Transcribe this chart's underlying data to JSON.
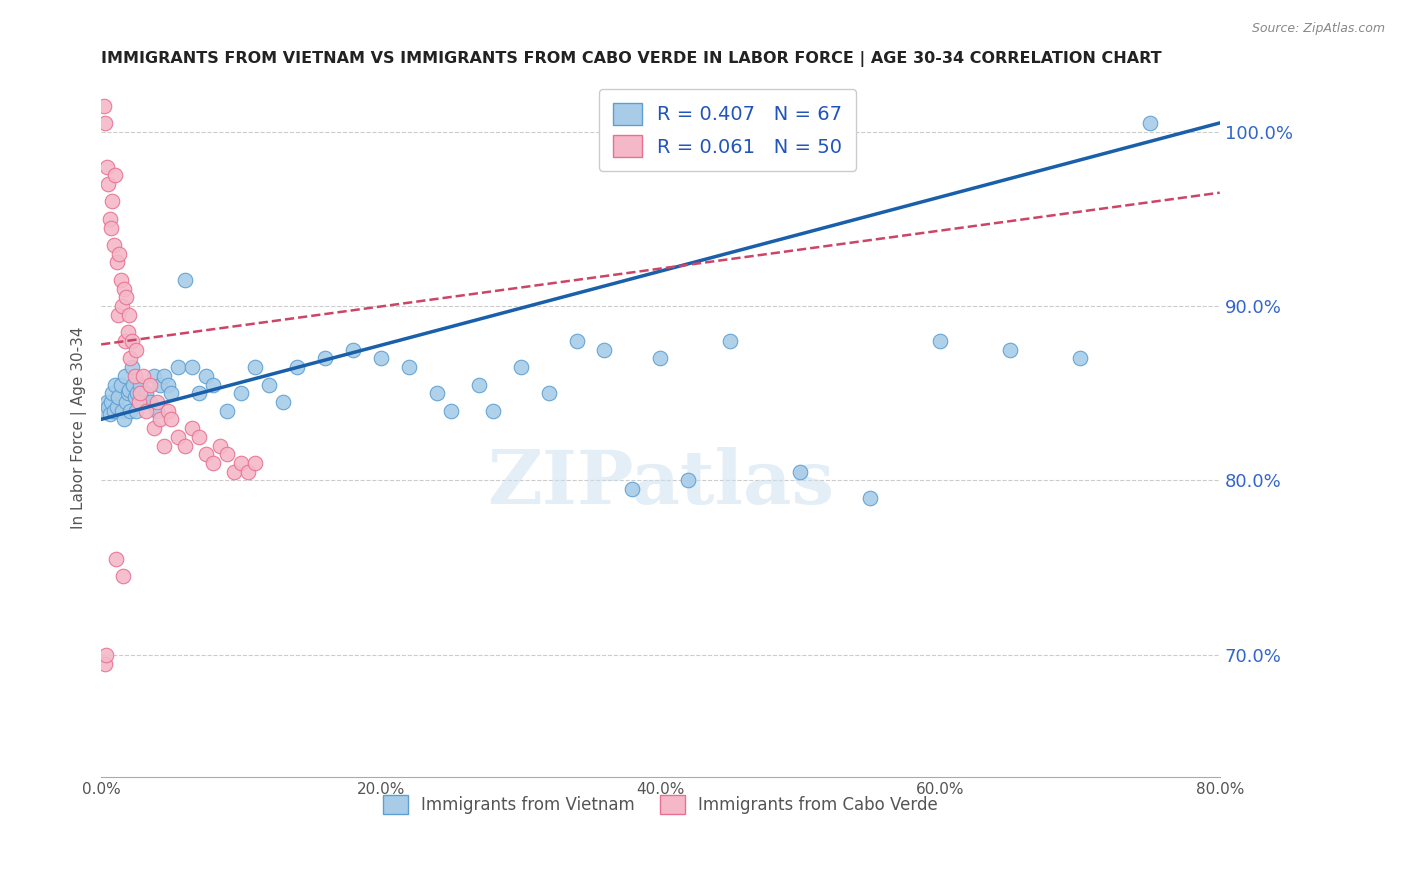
{
  "title": "IMMIGRANTS FROM VIETNAM VS IMMIGRANTS FROM CABO VERDE IN LABOR FORCE | AGE 30-34 CORRELATION CHART",
  "source": "Source: ZipAtlas.com",
  "ylabel": "In Labor Force | Age 30-34",
  "xlim": [
    0.0,
    80.0
  ],
  "ylim": [
    63.0,
    103.0
  ],
  "ytick_labels": [
    "70.0%",
    "80.0%",
    "90.0%",
    "100.0%"
  ],
  "ytick_values": [
    70.0,
    80.0,
    90.0,
    100.0
  ],
  "xtick_values": [
    0.0,
    10.0,
    20.0,
    30.0,
    40.0,
    50.0,
    60.0,
    70.0,
    80.0
  ],
  "xtick_labels": [
    "0.0%",
    "",
    "20.0%",
    "",
    "40.0%",
    "",
    "60.0%",
    "",
    "80.0%"
  ],
  "vietnam_color": "#a8cce8",
  "caboverde_color": "#f5b8c8",
  "vietnam_edge": "#5b9fd4",
  "caboverde_edge": "#e87090",
  "line_vietnam_color": "#1a5faa",
  "line_caboverde_color": "#cc4466",
  "legend_vietnam_label": "Immigrants from Vietnam",
  "legend_caboverde_label": "Immigrants from Cabo Verde",
  "R_vietnam": 0.407,
  "N_vietnam": 67,
  "R_caboverde": 0.061,
  "N_caboverde": 50,
  "legend_color": "#2255bb",
  "right_axis_color": "#3366cc",
  "title_color": "#222222",
  "line_vietnam_y0": 83.5,
  "line_vietnam_y1": 100.5,
  "line_caboverde_y0": 87.8,
  "line_caboverde_y1": 96.5,
  "vietnam_x": [
    0.3,
    0.4,
    0.5,
    0.6,
    0.7,
    0.8,
    0.9,
    1.0,
    1.1,
    1.2,
    1.4,
    1.5,
    1.6,
    1.7,
    1.8,
    1.9,
    2.0,
    2.1,
    2.2,
    2.3,
    2.4,
    2.5,
    2.6,
    2.8,
    3.0,
    3.2,
    3.5,
    3.8,
    4.0,
    4.2,
    4.5,
    4.8,
    5.0,
    5.5,
    6.0,
    6.5,
    7.0,
    7.5,
    8.0,
    9.0,
    10.0,
    11.0,
    12.0,
    13.0,
    14.0,
    16.0,
    18.0,
    20.0,
    22.0,
    24.0,
    25.0,
    27.0,
    28.0,
    30.0,
    32.0,
    34.0,
    36.0,
    38.0,
    40.0,
    42.0,
    45.0,
    50.0,
    55.0,
    60.0,
    65.0,
    70.0,
    75.0
  ],
  "vietnam_y": [
    84.0,
    84.5,
    84.2,
    83.8,
    84.5,
    85.0,
    84.0,
    85.5,
    84.2,
    84.8,
    85.5,
    84.0,
    83.5,
    86.0,
    84.5,
    85.0,
    85.2,
    84.0,
    86.5,
    85.5,
    84.8,
    84.0,
    85.0,
    85.5,
    84.5,
    85.0,
    84.5,
    86.0,
    84.0,
    85.5,
    86.0,
    85.5,
    85.0,
    86.5,
    91.5,
    86.5,
    85.0,
    86.0,
    85.5,
    84.0,
    85.0,
    86.5,
    85.5,
    84.5,
    86.5,
    87.0,
    87.5,
    87.0,
    86.5,
    85.0,
    84.0,
    85.5,
    84.0,
    86.5,
    85.0,
    88.0,
    87.5,
    79.5,
    87.0,
    80.0,
    88.0,
    80.5,
    79.0,
    88.0,
    87.5,
    87.0,
    100.5
  ],
  "caboverde_x": [
    0.2,
    0.3,
    0.4,
    0.5,
    0.6,
    0.7,
    0.8,
    0.9,
    1.0,
    1.1,
    1.2,
    1.3,
    1.4,
    1.5,
    1.6,
    1.7,
    1.8,
    1.9,
    2.0,
    2.1,
    2.2,
    2.4,
    2.5,
    2.7,
    2.8,
    3.0,
    3.2,
    3.5,
    3.8,
    4.0,
    4.2,
    4.5,
    4.8,
    5.0,
    5.5,
    6.0,
    6.5,
    7.0,
    7.5,
    8.0,
    8.5,
    9.0,
    9.5,
    10.0,
    10.5,
    11.0,
    0.25,
    0.35,
    1.05,
    1.55
  ],
  "caboverde_y": [
    101.5,
    100.5,
    98.0,
    97.0,
    95.0,
    94.5,
    96.0,
    93.5,
    97.5,
    92.5,
    89.5,
    93.0,
    91.5,
    90.0,
    91.0,
    88.0,
    90.5,
    88.5,
    89.5,
    87.0,
    88.0,
    86.0,
    87.5,
    84.5,
    85.0,
    86.0,
    84.0,
    85.5,
    83.0,
    84.5,
    83.5,
    82.0,
    84.0,
    83.5,
    82.5,
    82.0,
    83.0,
    82.5,
    81.5,
    81.0,
    82.0,
    81.5,
    80.5,
    81.0,
    80.5,
    81.0,
    69.5,
    70.0,
    75.5,
    74.5
  ]
}
